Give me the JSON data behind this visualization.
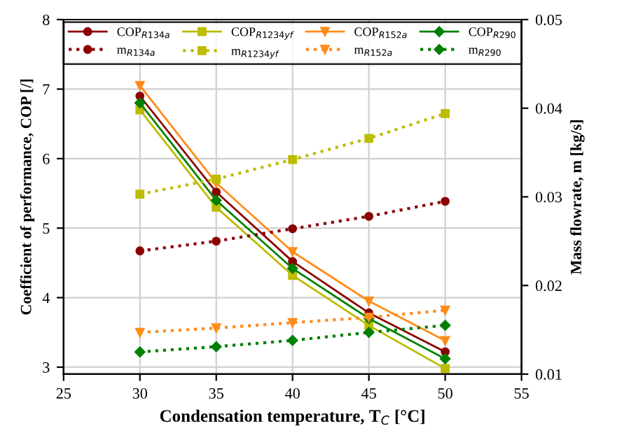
{
  "chart_data": {
    "type": "line",
    "xlabel": "Condensation temperature, T$_{C}$ [°C]",
    "ylabel": "Coefficient of performance, COP [/]",
    "y2label": "Mass flowrate, m [kg/s]",
    "x": [
      30,
      35,
      40,
      45,
      50
    ],
    "xlim": [
      25,
      55
    ],
    "xticks": [
      25,
      30,
      35,
      40,
      45,
      50,
      55
    ],
    "ylim": [
      2.9,
      8
    ],
    "yticks": [
      3,
      4,
      5,
      6,
      7,
      8
    ],
    "y2lim": [
      0.01,
      0.05
    ],
    "y2ticks": [
      0.01,
      0.02,
      0.03,
      0.04,
      0.05
    ],
    "grid": true,
    "legend": "top",
    "series": [
      {
        "name": "COP$_{R134a}$",
        "color": "#8b0000",
        "marker": "circle",
        "line_style": "solid",
        "values": [
          6.9,
          5.52,
          4.52,
          3.78,
          3.22
        ]
      },
      {
        "name": "m$_{R134a}$",
        "color": "#8b0000",
        "marker": "circle",
        "line_style": "dotted",
        "axis": "y2",
        "values": [
          0.0239,
          0.025,
          0.0264,
          0.0278,
          0.0295
        ]
      },
      {
        "name": "COP$_{R1234yf}$",
        "color": "#bcbc00",
        "marker": "square",
        "line_style": "solid",
        "values": [
          6.7,
          5.3,
          4.32,
          3.6,
          2.98
        ]
      },
      {
        "name": "m$_{R1234yf}$",
        "color": "#bcbc00",
        "marker": "square",
        "line_style": "dotted",
        "axis": "y2",
        "values": [
          0.0303,
          0.032,
          0.0342,
          0.0366,
          0.0394
        ]
      },
      {
        "name": "COP$_{R152a}$",
        "color": "#ff8c1a",
        "marker": "triangle",
        "line_style": "solid",
        "values": [
          7.05,
          5.65,
          4.66,
          3.95,
          3.38
        ]
      },
      {
        "name": "m$_{R152a}$",
        "color": "#ff8c1a",
        "marker": "triangle",
        "line_style": "dotted",
        "axis": "y2",
        "values": [
          0.0147,
          0.0152,
          0.0158,
          0.0164,
          0.0172
        ]
      },
      {
        "name": "COP$_{R290}$",
        "color": "#008000",
        "marker": "diamond",
        "line_style": "solid",
        "values": [
          6.8,
          5.4,
          4.42,
          3.7,
          3.12
        ]
      },
      {
        "name": "m$_{R290}$",
        "color": "#008000",
        "marker": "diamond",
        "line_style": "dotted",
        "axis": "y2",
        "values": [
          0.0125,
          0.0131,
          0.0138,
          0.0147,
          0.0155
        ]
      }
    ]
  }
}
